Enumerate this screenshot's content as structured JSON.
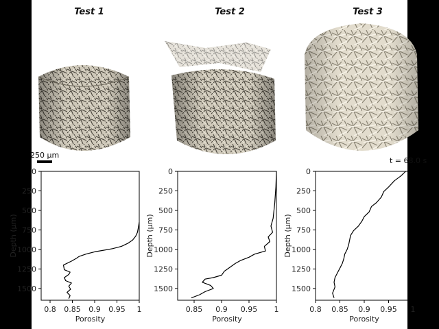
{
  "scale_bar_label": "250 µm",
  "time_label": "t = 68.0 s",
  "colors": {
    "background": "#ffffff",
    "side_bars": "#000000",
    "curve": "#000000",
    "sample_fill": "#d8d2c4",
    "sample_shadow": "#3a3832"
  },
  "chart_data": [
    {
      "type": "line",
      "title": "Test 1",
      "xlabel": "Porosity",
      "ylabel": "Depth (µm)",
      "xlim": [
        0.78,
        1.0
      ],
      "ylim": [
        0,
        1650
      ],
      "y_inverted": true,
      "xticks": [
        0.8,
        0.85,
        0.9,
        0.95,
        1
      ],
      "xticklabels": [
        "0.8",
        "0.85",
        "0.9",
        "0.95",
        "1"
      ],
      "yticks": [
        0,
        250,
        500,
        750,
        1000,
        1250,
        1500
      ],
      "series": [
        {
          "x": [
            1.0,
            0.998,
            0.996,
            0.992,
            0.985,
            0.975,
            0.96,
            0.94,
            0.92,
            0.9,
            0.88,
            0.865,
            0.86,
            0.848,
            0.83,
            0.832,
            0.845,
            0.842,
            0.832,
            0.835,
            0.848,
            0.842,
            0.846,
            0.838,
            0.845,
            0.842
          ],
          "y": [
            650,
            720,
            780,
            830,
            880,
            920,
            960,
            990,
            1010,
            1030,
            1060,
            1090,
            1110,
            1150,
            1200,
            1260,
            1290,
            1320,
            1360,
            1400,
            1430,
            1470,
            1510,
            1550,
            1590,
            1630
          ]
        }
      ]
    },
    {
      "type": "line",
      "title": "Test 2",
      "xlabel": "Porosity",
      "ylabel": "Depth (µm)",
      "xlim": [
        0.82,
        1.0
      ],
      "ylim": [
        0,
        1650
      ],
      "y_inverted": true,
      "xticks": [
        0.85,
        0.9,
        0.95,
        1
      ],
      "xticklabels": [
        "0.85",
        "0.9",
        "0.95",
        "1"
      ],
      "yticks": [
        0,
        250,
        500,
        750,
        1000,
        1250,
        1500
      ],
      "series": [
        {
          "x": [
            1.0,
            0.999,
            0.997,
            0.994,
            0.99,
            0.993,
            0.985,
            0.988,
            0.978,
            0.98,
            0.96,
            0.95,
            0.935,
            0.925,
            0.915,
            0.905,
            0.9,
            0.885,
            0.87,
            0.865,
            0.88,
            0.885,
            0.87,
            0.86,
            0.845
          ],
          "y": [
            0,
            200,
            400,
            600,
            700,
            780,
            840,
            900,
            960,
            1020,
            1060,
            1100,
            1140,
            1180,
            1230,
            1280,
            1330,
            1360,
            1380,
            1420,
            1460,
            1500,
            1540,
            1580,
            1620
          ]
        }
      ]
    },
    {
      "type": "line",
      "title": "Test 3",
      "xlabel": "Porosity",
      "ylabel": "Depth (µm)",
      "xlim": [
        0.8,
        1.0
      ],
      "ylim": [
        0,
        1650
      ],
      "y_inverted": true,
      "xticks": [
        0.8,
        0.85,
        0.9,
        0.95,
        1
      ],
      "xticklabels": [
        "0.8",
        "0.85",
        "0.9",
        "0.95",
        "1"
      ],
      "yticks": [
        0,
        250,
        500,
        750,
        1000,
        1250,
        1500
      ],
      "series": [
        {
          "x": [
            0.985,
            0.975,
            0.962,
            0.95,
            0.94,
            0.935,
            0.925,
            0.915,
            0.91,
            0.9,
            0.895,
            0.888,
            0.878,
            0.872,
            0.87,
            0.868,
            0.865,
            0.86,
            0.858,
            0.855,
            0.85,
            0.845,
            0.84,
            0.838,
            0.84,
            0.835,
            0.838
          ],
          "y": [
            0,
            60,
            120,
            200,
            260,
            330,
            400,
            450,
            520,
            580,
            640,
            700,
            760,
            820,
            880,
            940,
            1000,
            1060,
            1120,
            1180,
            1240,
            1300,
            1360,
            1420,
            1480,
            1560,
            1620
          ]
        }
      ]
    }
  ]
}
